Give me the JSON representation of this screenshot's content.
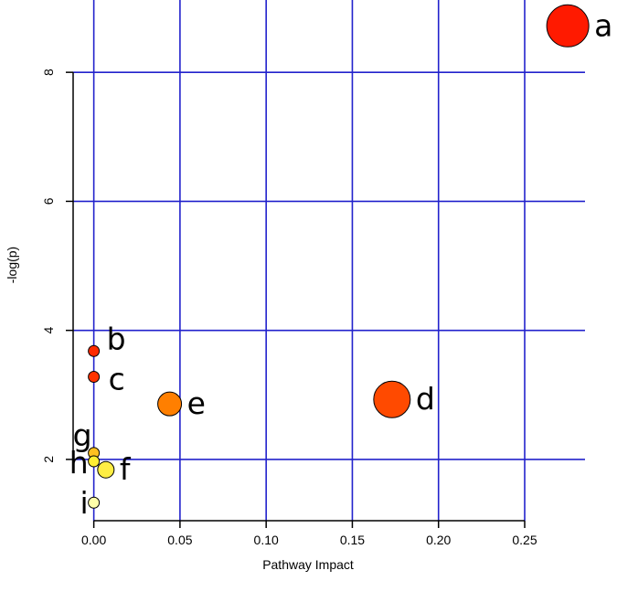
{
  "chart_data": {
    "type": "scatter",
    "title": "",
    "xlabel": "Pathway Impact",
    "ylabel": "-log(p)",
    "xlim": [
      -0.012,
      0.285
    ],
    "ylim": [
      1.05,
      9.05
    ],
    "x_ticks": [
      0.0,
      0.05,
      0.1,
      0.15,
      0.2,
      0.25
    ],
    "x_tick_labels": [
      "0.00",
      "0.05",
      "0.10",
      "0.15",
      "0.20",
      "0.25"
    ],
    "y_ticks": [
      2,
      4,
      6,
      8
    ],
    "y_tick_labels": [
      "2",
      "4",
      "6",
      "8"
    ],
    "grid": true,
    "grid_color": "#2222cc",
    "points": [
      {
        "label": "a",
        "x": 0.275,
        "y": 8.72,
        "size": 23,
        "color": "#ff1a00"
      },
      {
        "label": "b",
        "x": 0.0,
        "y": 3.68,
        "size": 6,
        "color": "#ff2a00"
      },
      {
        "label": "c",
        "x": 0.0,
        "y": 3.28,
        "size": 6,
        "color": "#ff3300"
      },
      {
        "label": "d",
        "x": 0.173,
        "y": 2.93,
        "size": 20,
        "color": "#ff4a00"
      },
      {
        "label": "e",
        "x": 0.044,
        "y": 2.86,
        "size": 13,
        "color": "#ff7f00"
      },
      {
        "label": "g",
        "x": 0.0,
        "y": 2.1,
        "size": 6,
        "color": "#ffc020"
      },
      {
        "label": "h",
        "x": 0.0,
        "y": 1.97,
        "size": 6,
        "color": "#ffee33"
      },
      {
        "label": "f",
        "x": 0.007,
        "y": 1.84,
        "size": 9,
        "color": "#ffee44"
      },
      {
        "label": "i",
        "x": 0.0,
        "y": 1.33,
        "size": 6,
        "color": "#ffffaa"
      }
    ]
  }
}
